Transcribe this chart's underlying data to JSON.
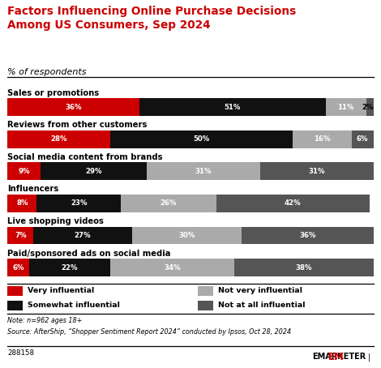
{
  "title": "Factors Influencing Online Purchase Decisions\nAmong US Consumers, Sep 2024",
  "subtitle": "% of respondents",
  "categories": [
    "Sales or promotions",
    "Reviews from other customers",
    "Social media content from brands",
    "Influencers",
    "Live shopping videos",
    "Paid/sponsored ads on social media"
  ],
  "series_names": [
    "Very influential",
    "Somewhat influential",
    "Not very influential",
    "Not at all influential"
  ],
  "series": {
    "Very influential": [
      36,
      28,
      9,
      8,
      7,
      6
    ],
    "Somewhat influential": [
      51,
      50,
      29,
      23,
      27,
      22
    ],
    "Not very influential": [
      11,
      16,
      31,
      26,
      30,
      34
    ],
    "Not at all influential": [
      2,
      6,
      31,
      42,
      36,
      38
    ]
  },
  "colors": {
    "Very influential": "#cc0000",
    "Somewhat influential": "#111111",
    "Not very influential": "#aaaaaa",
    "Not at all influential": "#555555"
  },
  "note_line1": "Note: n=962 ages 18+",
  "note_line2": "Source: AfterShip, “Shopper Sentiment Report 2024” conducted by Ipsos, Oct 28, 2024",
  "chart_id": "288158",
  "background_color": "#ffffff",
  "title_color": "#cc0000",
  "bar_label_min": 6
}
